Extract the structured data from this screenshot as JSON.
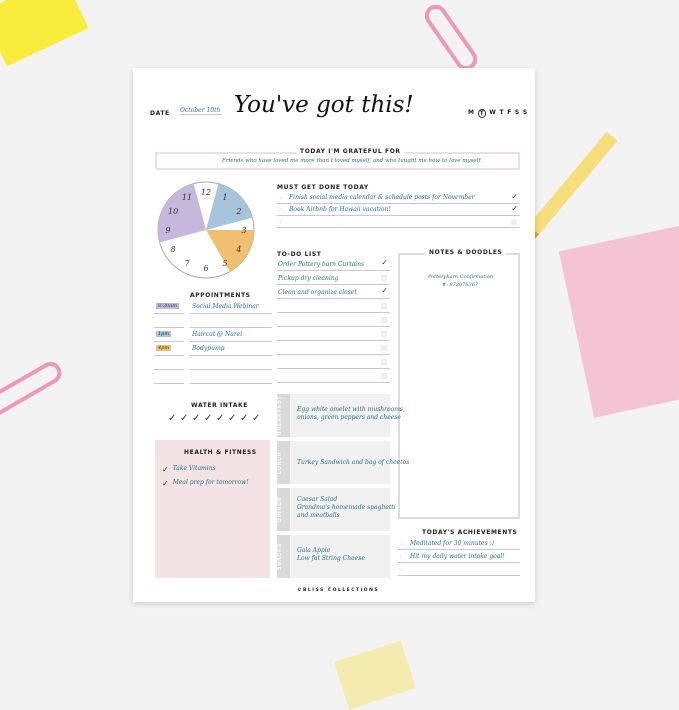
{
  "header": {
    "date_label": "DATE",
    "date_value": "October 10th",
    "title": "You've got this!",
    "days": [
      "M",
      "T",
      "W",
      "T",
      "F",
      "S",
      "S"
    ],
    "selected_day": "T"
  },
  "grateful": {
    "heading": "TODAY I'M GRATEFUL FOR",
    "text": "Friends who have loved me more than I loved myself, and who taught me how to love myself."
  },
  "clock": {
    "numbers": [
      "12",
      "1",
      "2",
      "3",
      "4",
      "5",
      "6",
      "7",
      "8",
      "9",
      "10",
      "11"
    ],
    "colors": {
      "purple": "#c6b8dc",
      "blue": "#a7c4dd",
      "yellow": "#f0c070"
    }
  },
  "must_do": {
    "heading": "MUST GET DONE TODAY",
    "items": [
      {
        "n": "1",
        "text": "Finish social media calendar & schedule posts for November",
        "done": true
      },
      {
        "n": "2",
        "text": "Book Airbnb for Hawaii vacation!",
        "done": true
      },
      {
        "n": "3",
        "text": "",
        "done": false
      }
    ]
  },
  "appointments": {
    "heading": "APPOINTMENTS",
    "items": [
      {
        "time": "8:30am",
        "text": "Social Media Webinar",
        "color": "#c6b8dc"
      },
      {
        "time": "",
        "text": ""
      },
      {
        "time": "1pm",
        "text": "Haircut @ Narel",
        "color": "#a7c4dd"
      },
      {
        "time": "4pm",
        "text": "Bodypump",
        "color": "#f0c070"
      },
      {
        "time": "",
        "text": ""
      },
      {
        "time": "",
        "text": ""
      }
    ]
  },
  "todo": {
    "heading": "TO-DO LIST",
    "items": [
      {
        "text": "Order Pottery barn Curtains",
        "done": true
      },
      {
        "text": "Pickup dry cleaning",
        "done": false
      },
      {
        "text": "Clean and organize closet",
        "done": true
      },
      {
        "text": "",
        "done": false
      },
      {
        "text": "",
        "done": false
      },
      {
        "text": "",
        "done": false
      },
      {
        "text": "",
        "done": false
      },
      {
        "text": "",
        "done": false
      },
      {
        "text": "",
        "done": false
      }
    ]
  },
  "notes": {
    "heading": "NOTES & DOODLES",
    "lines": [
      "Potterybarn Confirmation",
      "#: 872078367"
    ]
  },
  "water": {
    "heading": "WATER INTAKE",
    "glasses": 8,
    "checked": 8
  },
  "health": {
    "heading": "HEALTH & FITNESS",
    "items": [
      "Take Vitamins",
      "Meal prep for tomorrow!"
    ],
    "bg": "#f3e3e4"
  },
  "meals": [
    {
      "label": "BREAKFAST",
      "lines": [
        "Egg white omelet with mushrooms,",
        "onions, green peppers and cheese"
      ]
    },
    {
      "label": "LUNCH",
      "lines": [
        "Turkey Sandwich and bag of cheetos"
      ]
    },
    {
      "label": "DINNER",
      "lines": [
        "Caesar Salad",
        "Grandma's homemade spaghetti",
        "and meatballs"
      ]
    },
    {
      "label": "SNACKS",
      "lines": [
        "Gala Apple",
        "Low fat String Cheese"
      ]
    }
  ],
  "achievements": {
    "heading": "TODAY'S ACHIEVEMENTS",
    "items": [
      {
        "n": "1",
        "text": "Meditated for 30 minutes :)"
      },
      {
        "n": "2",
        "text": "Hit my daily water intake goal!"
      },
      {
        "n": "3",
        "text": ""
      }
    ]
  },
  "footer": {
    "brand": "©BLISS COLLECTIONS"
  }
}
